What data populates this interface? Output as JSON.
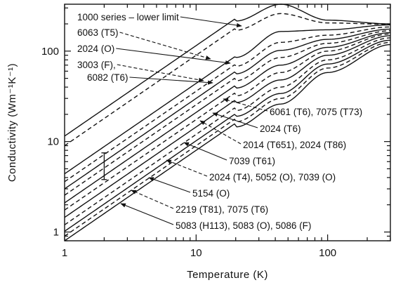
{
  "chart_data": {
    "type": "line",
    "title": "",
    "xlabel": "Temperature (K)",
    "ylabel": "Conductivity (Wm⁻¹K⁻¹)",
    "xscale": "log",
    "yscale": "log",
    "xlim": [
      1,
      300
    ],
    "ylim": [
      0.8,
      330
    ],
    "xticks": [
      {
        "value": 1,
        "label": "1"
      },
      {
        "value": 10,
        "label": "10"
      },
      {
        "value": 100,
        "label": "100"
      }
    ],
    "yticks": [
      {
        "value": 1,
        "label": "1"
      },
      {
        "value": 10,
        "label": "10"
      },
      {
        "value": 100,
        "label": "100"
      }
    ],
    "grid": false,
    "series": [
      {
        "name": "1000 series – lower limit",
        "style": "solid",
        "peak": 330,
        "x": [
          1,
          10,
          20,
          44,
          100,
          300
        ],
        "y": [
          11.5,
          120,
          215,
          330,
          220,
          200
        ]
      },
      {
        "name": "6063 (T5)",
        "style": "dashed",
        "peak": 260,
        "x": [
          1,
          10,
          20,
          44,
          100,
          300
        ],
        "y": [
          9,
          94,
          170,
          260,
          205,
          198
        ]
      },
      {
        "name": "2024 (O)",
        "style": "solid",
        "peak": 165,
        "x": [
          1,
          10,
          20,
          44,
          100,
          300
        ],
        "y": [
          4.4,
          45,
          85,
          165,
          172,
          195
        ]
      },
      {
        "name": "3003 (F)",
        "style": "dashed",
        "peak": 125,
        "x": [
          1,
          10,
          20,
          44,
          100,
          300
        ],
        "y": [
          3.6,
          36,
          68,
          125,
          150,
          185
        ]
      },
      {
        "name": "6082 (T6)",
        "style": "solid",
        "peak": 102,
        "x": [
          1,
          10,
          20,
          44,
          100,
          300
        ],
        "y": [
          3,
          30,
          56,
          102,
          135,
          175
        ]
      },
      {
        "name": "6061 (T6), 7075 (T73)",
        "style": "dashed",
        "peak": 85,
        "x": [
          1,
          10,
          20,
          44,
          100,
          300
        ],
        "y": [
          2.55,
          25.5,
          47,
          85,
          122,
          168
        ]
      },
      {
        "name": "2024 (T6)",
        "style": "solid",
        "peak": 70,
        "x": [
          1,
          10,
          20,
          44,
          100,
          300
        ],
        "y": [
          2.1,
          21,
          39,
          70,
          110,
          160
        ]
      },
      {
        "name": "2014 (T651), 2024 (T86)",
        "style": "dashed",
        "peak": 58,
        "x": [
          1,
          10,
          20,
          44,
          100,
          300
        ],
        "y": [
          1.75,
          17.5,
          32,
          58,
          100,
          155
        ]
      },
      {
        "name": "7039 (T61)",
        "style": "solid",
        "peak": 48,
        "x": [
          1,
          10,
          20,
          44,
          100,
          300
        ],
        "y": [
          1.45,
          14.5,
          27,
          48,
          90,
          148
        ]
      },
      {
        "name": "2024 (T4), 5052 (O), 7039 (O)",
        "style": "dashed",
        "peak": 40,
        "x": [
          1,
          10,
          20,
          44,
          100,
          300
        ],
        "y": [
          1.2,
          12,
          22,
          40,
          80,
          140
        ]
      },
      {
        "name": "5154 (O)",
        "style": "solid",
        "peak": 34,
        "x": [
          1,
          10,
          20,
          44,
          100,
          300
        ],
        "y": [
          1.02,
          10.2,
          19,
          34,
          72,
          132
        ]
      },
      {
        "name": "2219 (T81), 7075 (T6)",
        "style": "dashed",
        "peak": 30,
        "x": [
          1,
          10,
          20,
          44,
          100,
          300
        ],
        "y": [
          0.9,
          9,
          16.5,
          30,
          65,
          125
        ]
      },
      {
        "name": "5083 (H113), 5083 (O), 5086 (F)",
        "style": "solid",
        "peak": 26,
        "x": [
          1,
          10,
          20,
          44,
          100,
          300
        ],
        "y": [
          0.8,
          8,
          14.5,
          26,
          58,
          118
        ]
      }
    ],
    "annotations": [
      {
        "text": "1000 series – lower limit",
        "series": 0,
        "style": "solid",
        "label_side": "left"
      },
      {
        "text": "6063 (T5)",
        "series": 1,
        "style": "dashed",
        "label_side": "left"
      },
      {
        "text": "2024 (O)",
        "series": 2,
        "style": "solid",
        "label_side": "left"
      },
      {
        "text": "3003 (F),",
        "series": 3,
        "style": "dashed",
        "label_side": "left"
      },
      {
        "text": "6082 (T6)",
        "series": 4,
        "style": "solid",
        "label_side": "left"
      },
      {
        "text": "6061 (T6), 7075 (T73)",
        "series": 5,
        "style": "dashed",
        "label_side": "right"
      },
      {
        "text": "2024 (T6)",
        "series": 6,
        "style": "solid",
        "label_side": "right"
      },
      {
        "text": "2014 (T651), 2024 (T86)",
        "series": 7,
        "style": "dashed",
        "label_side": "right"
      },
      {
        "text": "7039 (T61)",
        "series": 8,
        "style": "solid",
        "label_side": "right"
      },
      {
        "text": "2024 (T4), 5052 (O), 7039 (O)",
        "series": 9,
        "style": "dashed",
        "label_side": "right"
      },
      {
        "text": "5154 (O)",
        "series": 10,
        "style": "solid",
        "label_side": "right"
      },
      {
        "text": "2219 (T81), 7075 (T6)",
        "series": 11,
        "style": "dashed",
        "label_side": "right"
      },
      {
        "text": "5083 (H113), 5083 (O), 5086 (F)",
        "series": 12,
        "style": "solid",
        "label_side": "right"
      }
    ],
    "error_bar": {
      "x": 2,
      "y_low": 3.8,
      "y_high": 7.5
    }
  }
}
